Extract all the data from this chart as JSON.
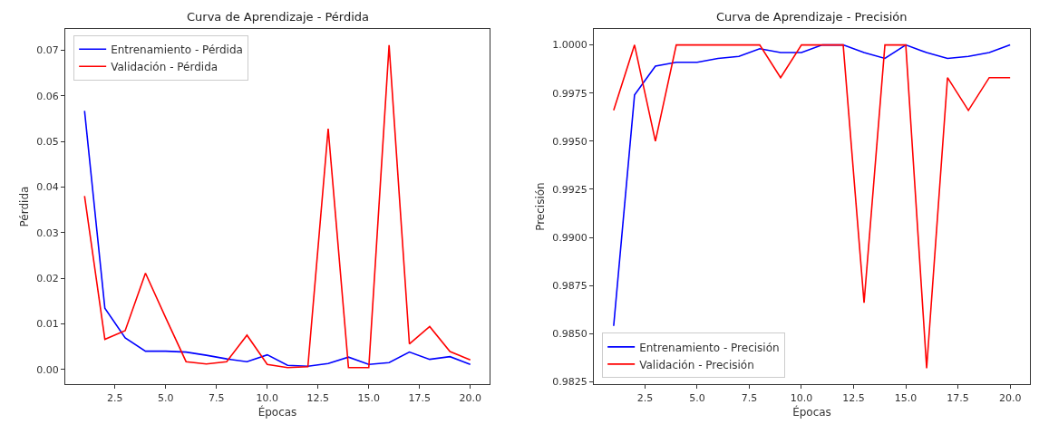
{
  "chart_data": [
    {
      "type": "line",
      "title": "Curva de Aprendizaje - Pérdida",
      "xlabel": "Épocas",
      "ylabel": "Pérdida",
      "x": [
        1,
        2,
        3,
        4,
        5,
        6,
        7,
        8,
        9,
        10,
        11,
        12,
        13,
        14,
        15,
        16,
        17,
        18,
        19,
        20
      ],
      "series": [
        {
          "name": "Entrenamiento - Pérdida",
          "color": "#0000ff",
          "values": [
            0.0567,
            0.0134,
            0.0069,
            0.004,
            0.004,
            0.0038,
            0.0031,
            0.0023,
            0.0017,
            0.0032,
            0.0009,
            0.0007,
            0.0013,
            0.0027,
            0.0011,
            0.0015,
            0.0038,
            0.0022,
            0.0028,
            0.0011
          ]
        },
        {
          "name": "Validación - Pérdida",
          "color": "#ff0000",
          "values": [
            0.038,
            0.0066,
            0.0085,
            0.0211,
            0.0113,
            0.0017,
            0.0012,
            0.0017,
            0.0075,
            0.0011,
            0.0004,
            0.0006,
            0.0528,
            0.0004,
            0.0004,
            0.0711,
            0.0056,
            0.0094,
            0.0039,
            0.0021
          ]
        }
      ],
      "xlim": [
        0.05,
        20.95
      ],
      "ylim": [
        -0.0033,
        0.0747
      ],
      "xticks": [
        {
          "value": 2.5,
          "label": "2.5"
        },
        {
          "value": 5,
          "label": "5.0"
        },
        {
          "value": 7.5,
          "label": "7.5"
        },
        {
          "value": 10,
          "label": "10.0"
        },
        {
          "value": 12.5,
          "label": "12.5"
        },
        {
          "value": 15,
          "label": "15.0"
        },
        {
          "value": 17.5,
          "label": "17.5"
        },
        {
          "value": 20,
          "label": "20.0"
        }
      ],
      "yticks": [
        {
          "value": 0,
          "label": "0.00"
        },
        {
          "value": 0.01,
          "label": "0.01"
        },
        {
          "value": 0.02,
          "label": "0.02"
        },
        {
          "value": 0.03,
          "label": "0.03"
        },
        {
          "value": 0.04,
          "label": "0.04"
        },
        {
          "value": 0.05,
          "label": "0.05"
        },
        {
          "value": 0.06,
          "label": "0.06"
        },
        {
          "value": 0.07,
          "label": "0.07"
        }
      ],
      "legend": "top left",
      "line_style": "solid"
    },
    {
      "type": "line",
      "title": "Curva de Aprendizaje - Precisión",
      "xlabel": "Épocas",
      "ylabel": "Precisión",
      "x": [
        1,
        2,
        3,
        4,
        5,
        6,
        7,
        8,
        9,
        10,
        11,
        12,
        13,
        14,
        15,
        16,
        17,
        18,
        19,
        20
      ],
      "series": [
        {
          "name": "Entrenamiento - Precisión",
          "color": "#0000ff",
          "values": [
            0.9854,
            0.9974,
            0.9989,
            0.9991,
            0.9991,
            0.9993,
            0.9994,
            0.9998,
            0.9996,
            0.9996,
            1.0,
            1.0,
            0.9996,
            0.9993,
            1.0,
            0.9996,
            0.9993,
            0.9994,
            0.9996,
            1.0
          ]
        },
        {
          "name": "Validación - Precisión",
          "color": "#ff0000",
          "values": [
            0.9966,
            1.0,
            0.995,
            1.0,
            1.0,
            1.0,
            1.0,
            1.0,
            0.9983,
            1.0,
            1.0,
            1.0,
            0.9866,
            1.0,
            1.0,
            0.9832,
            0.9983,
            0.9966,
            0.9983,
            0.9983
          ]
        }
      ],
      "xlim": [
        0.05,
        20.95
      ],
      "ylim": [
        0.98236,
        1.00084
      ],
      "xticks": [
        {
          "value": 2.5,
          "label": "2.5"
        },
        {
          "value": 5,
          "label": "5.0"
        },
        {
          "value": 7.5,
          "label": "7.5"
        },
        {
          "value": 10,
          "label": "10.0"
        },
        {
          "value": 12.5,
          "label": "12.5"
        },
        {
          "value": 15,
          "label": "15.0"
        },
        {
          "value": 17.5,
          "label": "17.5"
        },
        {
          "value": 20,
          "label": "20.0"
        }
      ],
      "yticks": [
        {
          "value": 0.9825,
          "label": "0.9825"
        },
        {
          "value": 0.985,
          "label": "0.9850"
        },
        {
          "value": 0.9875,
          "label": "0.9875"
        },
        {
          "value": 0.99,
          "label": "0.9900"
        },
        {
          "value": 0.9925,
          "label": "0.9925"
        },
        {
          "value": 0.995,
          "label": "0.9950"
        },
        {
          "value": 0.9975,
          "label": "0.9975"
        },
        {
          "value": 1.0,
          "label": "1.0000"
        }
      ],
      "legend": "bottom left",
      "line_style": "solid"
    }
  ]
}
